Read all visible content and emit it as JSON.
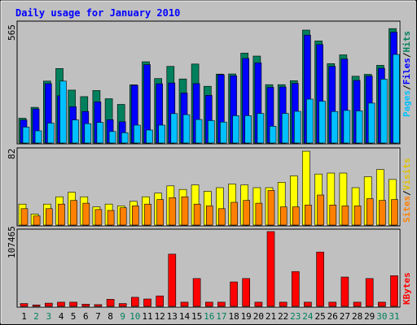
{
  "title": "Daily usage for January 2010",
  "colors": {
    "background": "#c0c0c0",
    "title": "#0000ff",
    "hits": "#00805c",
    "files": "#0000ff",
    "pages": "#00c0ff",
    "visits": "#ffff00",
    "sites": "#ff8000",
    "kbytes": "#ff0000",
    "weekend_label": "#00805c",
    "weekday_label": "#000000"
  },
  "chart_data": [
    {
      "type": "bar",
      "name_panel": "traffic",
      "ymax_label": "565",
      "ylim": [
        0,
        565
      ],
      "categories": [
        "1",
        "2",
        "3",
        "4",
        "5",
        "6",
        "7",
        "8",
        "9",
        "10",
        "11",
        "12",
        "13",
        "14",
        "15",
        "16",
        "17",
        "18",
        "19",
        "20",
        "21",
        "22",
        "23",
        "24",
        "25",
        "26",
        "27",
        "28",
        "29",
        "30",
        "31"
      ],
      "series": [
        {
          "name": "Hits",
          "values": [
            118,
            170,
            295,
            355,
            252,
            221,
            250,
            211,
            184,
            277,
            387,
            307,
            365,
            305,
            376,
            270,
            328,
            329,
            428,
            414,
            278,
            278,
            297,
            538,
            486,
            378,
            420,
            318,
            327,
            370,
            545
          ]
        },
        {
          "name": "Files",
          "values": [
            110,
            162,
            283,
            225,
            173,
            150,
            196,
            111,
            101,
            275,
            373,
            282,
            286,
            238,
            283,
            227,
            325,
            320,
            403,
            382,
            265,
            267,
            284,
            514,
            469,
            365,
            400,
            298,
            319,
            356,
            528
          ]
        },
        {
          "name": "Pages",
          "values": [
            76,
            58,
            95,
            295,
            110,
            92,
            98,
            55,
            49,
            85,
            62,
            85,
            140,
            135,
            112,
            107,
            100,
            130,
            130,
            141,
            80,
            141,
            151,
            209,
            199,
            150,
            155,
            153,
            190,
            304,
            422
          ]
        }
      ],
      "legend_label": [
        "Pages",
        "/",
        "Files",
        "/",
        "Hits"
      ]
    },
    {
      "type": "bar",
      "name_panel": "visitors",
      "ymax_label": "82",
      "ylim": [
        0,
        82
      ],
      "categories": [
        "1",
        "2",
        "3",
        "4",
        "5",
        "6",
        "7",
        "8",
        "9",
        "10",
        "11",
        "12",
        "13",
        "14",
        "15",
        "16",
        "17",
        "18",
        "19",
        "20",
        "21",
        "22",
        "23",
        "24",
        "25",
        "26",
        "27",
        "28",
        "29",
        "30",
        "31"
      ],
      "series": [
        {
          "name": "Visits",
          "values": [
            23,
            12,
            23,
            31,
            36,
            31,
            20,
            23,
            21,
            26,
            31,
            35,
            43,
            39,
            44,
            37,
            41,
            45,
            44,
            41,
            41,
            47,
            54,
            81,
            56,
            57,
            57,
            41,
            53,
            61,
            50
          ]
        },
        {
          "name": "Sites",
          "values": [
            18,
            10,
            18,
            23,
            27,
            24,
            17,
            16,
            19,
            21,
            23,
            28,
            30,
            31,
            23,
            21,
            18,
            25,
            27,
            24,
            38,
            20,
            20,
            22,
            33,
            22,
            21,
            21,
            29,
            27,
            28
          ]
        }
      ],
      "legend_label": [
        "Sites",
        "/",
        "Visits"
      ]
    },
    {
      "type": "bar",
      "name_panel": "kbytes",
      "ymax_label": "107465",
      "ylim": [
        0,
        107465
      ],
      "categories": [
        "1",
        "2",
        "3",
        "4",
        "5",
        "6",
        "7",
        "8",
        "9",
        "10",
        "11",
        "12",
        "13",
        "14",
        "15",
        "16",
        "17",
        "18",
        "19",
        "20",
        "21",
        "22",
        "23",
        "24",
        "25",
        "26",
        "27",
        "28",
        "29",
        "30",
        "31"
      ],
      "series": [
        {
          "name": "KBytes",
          "values": [
            4000,
            2000,
            4500,
            6000,
            6000,
            3000,
            2500,
            10000,
            4000,
            13000,
            10500,
            15000,
            75000,
            6000,
            40000,
            6000,
            6000,
            35000,
            40000,
            6000,
            107465,
            6000,
            50000,
            6000,
            78000,
            6000,
            42000,
            6000,
            40000,
            6000,
            44000
          ]
        }
      ],
      "legend_label": [
        "KBytes"
      ]
    }
  ],
  "day_labels": [
    "1",
    "2",
    "3",
    "4",
    "5",
    "6",
    "7",
    "8",
    "9",
    "10",
    "11",
    "12",
    "13",
    "14",
    "15",
    "16",
    "17",
    "18",
    "19",
    "20",
    "21",
    "22",
    "23",
    "24",
    "25",
    "26",
    "27",
    "28",
    "29",
    "30",
    "31"
  ],
  "weekend_days": [
    2,
    3,
    9,
    10,
    16,
    17,
    23,
    24,
    30,
    31
  ]
}
